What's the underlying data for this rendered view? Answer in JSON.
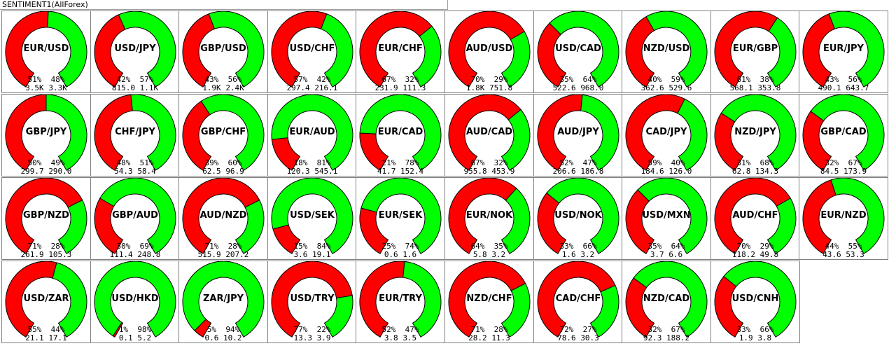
{
  "window_title": "SENTIMENT1(AllForex)",
  "colors": {
    "sell": "#ff0000",
    "buy": "#00ff00",
    "outline": "#000000"
  },
  "cells": [
    {
      "pair": "EUR/USD",
      "sell_pct": "51%",
      "buy_pct": "48%",
      "sell_vol": "3.5K",
      "buy_vol": "3.3K",
      "sell_frac": 0.51
    },
    {
      "pair": "USD/JPY",
      "sell_pct": "42%",
      "buy_pct": "57%",
      "sell_vol": "815.0",
      "buy_vol": "1.1K",
      "sell_frac": 0.42
    },
    {
      "pair": "GBP/USD",
      "sell_pct": "43%",
      "buy_pct": "56%",
      "sell_vol": "1.9K",
      "buy_vol": "2.4K",
      "sell_frac": 0.43
    },
    {
      "pair": "USD/CHF",
      "sell_pct": "57%",
      "buy_pct": "42%",
      "sell_vol": "297.4",
      "buy_vol": "216.1",
      "sell_frac": 0.57
    },
    {
      "pair": "EUR/CHF",
      "sell_pct": "67%",
      "buy_pct": "32%",
      "sell_vol": "231.9",
      "buy_vol": "111.3",
      "sell_frac": 0.67
    },
    {
      "pair": "AUD/USD",
      "sell_pct": "70%",
      "buy_pct": "29%",
      "sell_vol": "1.8K",
      "buy_vol": "751.8",
      "sell_frac": 0.7
    },
    {
      "pair": "USD/CAD",
      "sell_pct": "35%",
      "buy_pct": "64%",
      "sell_vol": "522.6",
      "buy_vol": "968.0",
      "sell_frac": 0.35
    },
    {
      "pair": "NZD/USD",
      "sell_pct": "40%",
      "buy_pct": "59%",
      "sell_vol": "362.6",
      "buy_vol": "529.6",
      "sell_frac": 0.4
    },
    {
      "pair": "EUR/GBP",
      "sell_pct": "61%",
      "buy_pct": "38%",
      "sell_vol": "568.1",
      "buy_vol": "353.8",
      "sell_frac": 0.61
    },
    {
      "pair": "EUR/JPY",
      "sell_pct": "43%",
      "buy_pct": "56%",
      "sell_vol": "490.1",
      "buy_vol": "643.7",
      "sell_frac": 0.43
    },
    {
      "pair": "GBP/JPY",
      "sell_pct": "50%",
      "buy_pct": "49%",
      "sell_vol": "299.7",
      "buy_vol": "290.0",
      "sell_frac": 0.5
    },
    {
      "pair": "CHF/JPY",
      "sell_pct": "48%",
      "buy_pct": "51%",
      "sell_vol": "54.3",
      "buy_vol": "58.4",
      "sell_frac": 0.48
    },
    {
      "pair": "GBP/CHF",
      "sell_pct": "39%",
      "buy_pct": "60%",
      "sell_vol": "62.5",
      "buy_vol": "96.9",
      "sell_frac": 0.39
    },
    {
      "pair": "EUR/AUD",
      "sell_pct": "18%",
      "buy_pct": "81%",
      "sell_vol": "120.3",
      "buy_vol": "545.1",
      "sell_frac": 0.18
    },
    {
      "pair": "EUR/CAD",
      "sell_pct": "21%",
      "buy_pct": "78%",
      "sell_vol": "41.7",
      "buy_vol": "152.4",
      "sell_frac": 0.21
    },
    {
      "pair": "AUD/CAD",
      "sell_pct": "67%",
      "buy_pct": "32%",
      "sell_vol": "955.8",
      "buy_vol": "453.9",
      "sell_frac": 0.67
    },
    {
      "pair": "AUD/JPY",
      "sell_pct": "52%",
      "buy_pct": "47%",
      "sell_vol": "206.6",
      "buy_vol": "186.8",
      "sell_frac": 0.52
    },
    {
      "pair": "CAD/JPY",
      "sell_pct": "59%",
      "buy_pct": "40%",
      "sell_vol": "184.6",
      "buy_vol": "126.0",
      "sell_frac": 0.59
    },
    {
      "pair": "NZD/JPY",
      "sell_pct": "31%",
      "buy_pct": "68%",
      "sell_vol": "62.8",
      "buy_vol": "134.3",
      "sell_frac": 0.31
    },
    {
      "pair": "GBP/CAD",
      "sell_pct": "32%",
      "buy_pct": "67%",
      "sell_vol": "84.5",
      "buy_vol": "173.9",
      "sell_frac": 0.32
    },
    {
      "pair": "GBP/NZD",
      "sell_pct": "71%",
      "buy_pct": "28%",
      "sell_vol": "261.9",
      "buy_vol": "105.3",
      "sell_frac": 0.71
    },
    {
      "pair": "GBP/AUD",
      "sell_pct": "30%",
      "buy_pct": "69%",
      "sell_vol": "111.4",
      "buy_vol": "248.8",
      "sell_frac": 0.3
    },
    {
      "pair": "AUD/NZD",
      "sell_pct": "71%",
      "buy_pct": "28%",
      "sell_vol": "515.9",
      "buy_vol": "207.2",
      "sell_frac": 0.71
    },
    {
      "pair": "USD/SEK",
      "sell_pct": "15%",
      "buy_pct": "84%",
      "sell_vol": "3.6",
      "buy_vol": "19.1",
      "sell_frac": 0.15
    },
    {
      "pair": "EUR/SEK",
      "sell_pct": "25%",
      "buy_pct": "74%",
      "sell_vol": "0.6",
      "buy_vol": "1.6",
      "sell_frac": 0.25
    },
    {
      "pair": "EUR/NOK",
      "sell_pct": "64%",
      "buy_pct": "35%",
      "sell_vol": "5.8",
      "buy_vol": "3.2",
      "sell_frac": 0.64
    },
    {
      "pair": "USD/NOK",
      "sell_pct": "33%",
      "buy_pct": "66%",
      "sell_vol": "1.6",
      "buy_vol": "3.2",
      "sell_frac": 0.33
    },
    {
      "pair": "USD/MXN",
      "sell_pct": "35%",
      "buy_pct": "64%",
      "sell_vol": "3.7",
      "buy_vol": "6.6",
      "sell_frac": 0.35
    },
    {
      "pair": "AUD/CHF",
      "sell_pct": "70%",
      "buy_pct": "29%",
      "sell_vol": "118.2",
      "buy_vol": "49.8",
      "sell_frac": 0.7
    },
    {
      "pair": "EUR/NZD",
      "sell_pct": "44%",
      "buy_pct": "55%",
      "sell_vol": "43.6",
      "buy_vol": "53.3",
      "sell_frac": 0.44
    },
    {
      "pair": "USD/ZAR",
      "sell_pct": "55%",
      "buy_pct": "44%",
      "sell_vol": "21.1",
      "buy_vol": "17.1",
      "sell_frac": 0.55
    },
    {
      "pair": "USD/HKD",
      "sell_pct": "1%",
      "buy_pct": "98%",
      "sell_vol": "0.1",
      "buy_vol": "5.2",
      "sell_frac": 0.01
    },
    {
      "pair": "ZAR/JPY",
      "sell_pct": "5%",
      "buy_pct": "94%",
      "sell_vol": "0.6",
      "buy_vol": "10.2",
      "sell_frac": 0.05
    },
    {
      "pair": "USD/TRY",
      "sell_pct": "77%",
      "buy_pct": "22%",
      "sell_vol": "13.3",
      "buy_vol": "3.9",
      "sell_frac": 0.77
    },
    {
      "pair": "EUR/TRY",
      "sell_pct": "52%",
      "buy_pct": "47%",
      "sell_vol": "3.8",
      "buy_vol": "3.5",
      "sell_frac": 0.52
    },
    {
      "pair": "NZD/CHF",
      "sell_pct": "71%",
      "buy_pct": "28%",
      "sell_vol": "28.2",
      "buy_vol": "11.3",
      "sell_frac": 0.71
    },
    {
      "pair": "CAD/CHF",
      "sell_pct": "72%",
      "buy_pct": "27%",
      "sell_vol": "78.6",
      "buy_vol": "30.3",
      "sell_frac": 0.72
    },
    {
      "pair": "NZD/CAD",
      "sell_pct": "32%",
      "buy_pct": "67%",
      "sell_vol": "92.3",
      "buy_vol": "188.2",
      "sell_frac": 0.32
    },
    {
      "pair": "USD/CNH",
      "sell_pct": "33%",
      "buy_pct": "66%",
      "sell_vol": "1.9",
      "buy_vol": "3.8",
      "sell_frac": 0.33
    }
  ]
}
